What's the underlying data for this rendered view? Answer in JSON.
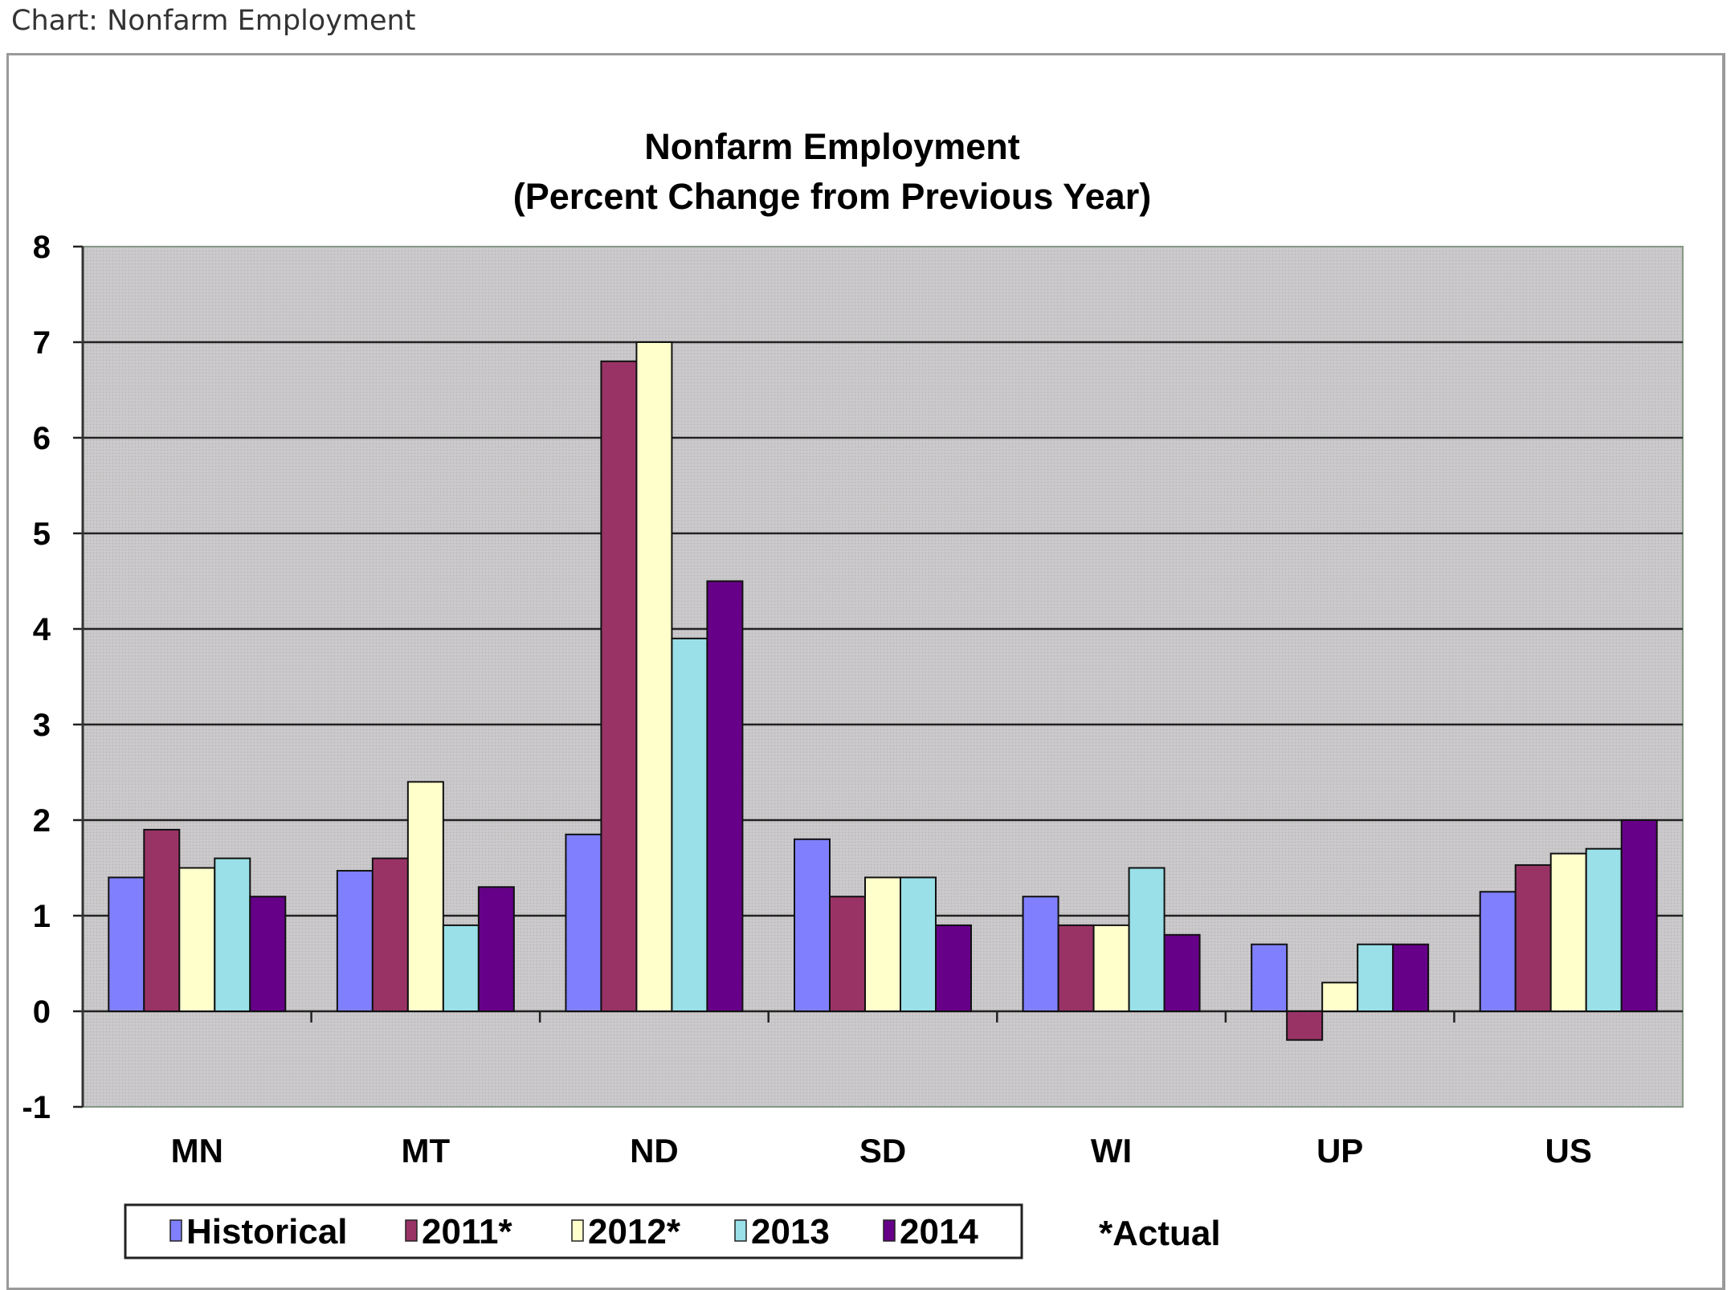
{
  "caption": "Chart: Nonfarm Employment",
  "chart_data": {
    "type": "bar",
    "title": "Nonfarm Employment",
    "subtitle": "(Percent Change from Previous Year)",
    "xlabel": "",
    "ylabel": "",
    "ylim": [
      -1,
      8
    ],
    "yticks": [
      8,
      7,
      6,
      5,
      4,
      3,
      2,
      1,
      0,
      -1
    ],
    "grid": true,
    "legend_position": "bottom",
    "categories": [
      "MN",
      "MT",
      "ND",
      "SD",
      "WI",
      "UP",
      "US"
    ],
    "series": [
      {
        "name": "Historical",
        "color": "#8080ff",
        "values": [
          1.4,
          1.47,
          1.85,
          1.8,
          1.2,
          0.7,
          1.25
        ]
      },
      {
        "name": "2011*",
        "color": "#993366",
        "values": [
          1.9,
          1.6,
          6.8,
          1.2,
          0.9,
          -0.3,
          1.53
        ]
      },
      {
        "name": "2012*",
        "color": "#ffffcc",
        "values": [
          1.5,
          2.4,
          7.0,
          1.4,
          0.9,
          0.3,
          1.65
        ]
      },
      {
        "name": "2013",
        "color": "#99e0e8",
        "values": [
          1.6,
          0.9,
          3.9,
          1.4,
          1.5,
          0.7,
          1.7
        ]
      },
      {
        "name": "2014",
        "color": "#660088",
        "values": [
          1.2,
          1.3,
          4.5,
          0.9,
          0.8,
          0.7,
          2.0
        ]
      }
    ],
    "annotation": "*Actual",
    "plot_background": "#c8c6c8"
  }
}
